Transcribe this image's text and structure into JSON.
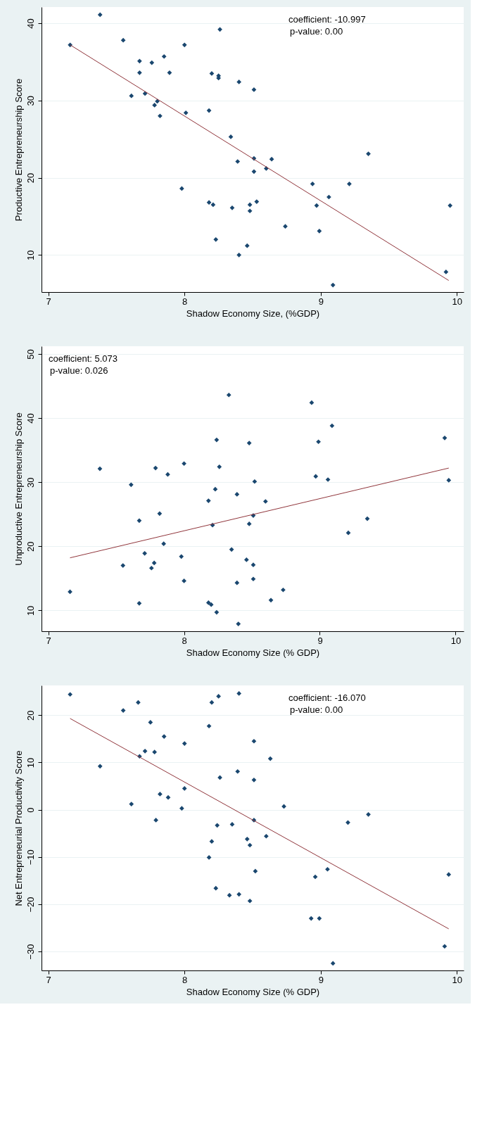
{
  "chart_data": [
    {
      "type": "scatter",
      "xlabel": "Shadow Economy Size, (%GDP)",
      "ylabel": "Productive Entrepreneurship Score",
      "xlim": [
        6.95,
        10.05
      ],
      "xticks": [
        7,
        8,
        9,
        10
      ],
      "ylim": [
        5.2,
        42.1
      ],
      "yticks": [
        10,
        20,
        30,
        40
      ],
      "grid": "y",
      "annotations": [
        "coefficient: -10.997",
        "p-value: 0.00"
      ],
      "series": [
        {
          "marker": "diamond",
          "color": "#1a476f",
          "x": [
            7.38,
            7.16,
            7.55,
            8.0,
            8.26,
            7.67,
            7.76,
            7.85,
            7.67,
            7.89,
            8.2,
            8.25,
            8.25,
            8.4,
            8.51,
            7.61,
            7.71,
            7.8,
            7.78,
            7.82,
            8.01,
            8.18,
            8.34,
            9.35,
            8.39,
            8.51,
            8.64,
            8.51,
            8.6,
            8.94,
            9.21,
            7.98,
            8.18,
            8.21,
            8.35,
            8.48,
            8.53,
            8.48,
            8.97,
            9.06,
            9.95,
            8.74,
            8.99,
            8.23,
            8.46,
            8.4,
            9.09,
            9.92
          ],
          "values": [
            41.1,
            37.2,
            37.8,
            37.2,
            39.2,
            35.1,
            34.9,
            35.7,
            33.6,
            33.6,
            33.5,
            33.2,
            32.9,
            32.4,
            31.4,
            30.6,
            30.9,
            29.9,
            29.4,
            28.0,
            28.4,
            28.7,
            25.3,
            23.1,
            22.1,
            22.5,
            22.4,
            20.8,
            21.2,
            19.2,
            19.2,
            18.6,
            16.8,
            16.5,
            16.1,
            16.5,
            16.9,
            15.7,
            16.4,
            17.5,
            16.4,
            13.7,
            13.1,
            12.0,
            11.2,
            10.0,
            6.1,
            7.8
          ]
        },
        {
          "type": "line",
          "color": "#90353b",
          "x": [
            7.16,
            9.94
          ],
          "values": [
            37.2,
            6.7
          ]
        }
      ]
    },
    {
      "type": "scatter",
      "xlabel": "Shadow Economy Size (% GDP)",
      "ylabel": "Unproductive Entrepreneurship Score",
      "xlim": [
        6.95,
        10.06
      ],
      "xticks": [
        7,
        8,
        9,
        10
      ],
      "ylim": [
        6.75,
        51.2
      ],
      "yticks": [
        10,
        20,
        30,
        40,
        50
      ],
      "grid": "y",
      "annotations": [
        "coefficient: 5.073",
        "p-value: 0.026"
      ],
      "series": [
        {
          "marker": "diamond",
          "color": "#1a476f",
          "x": [
            8.33,
            8.94,
            9.09,
            9.92,
            8.24,
            8.48,
            8.99,
            7.38,
            7.79,
            8.0,
            8.26,
            7.88,
            8.97,
            9.06,
            9.95,
            8.52,
            7.61,
            8.23,
            8.39,
            8.18,
            8.6,
            7.82,
            7.67,
            8.51,
            8.48,
            8.21,
            9.35,
            9.21,
            7.85,
            8.35,
            7.71,
            7.98,
            8.46,
            8.51,
            7.55,
            7.78,
            7.76,
            8.0,
            8.39,
            8.51,
            8.73,
            7.16,
            8.64,
            7.67,
            8.18,
            8.2,
            8.24,
            8.4
          ],
          "values": [
            43.6,
            42.4,
            38.8,
            36.9,
            36.6,
            36.1,
            36.3,
            32.1,
            32.2,
            32.9,
            32.4,
            31.2,
            30.9,
            30.4,
            30.3,
            30.1,
            29.6,
            28.9,
            28.1,
            27.1,
            27.0,
            25.1,
            24.0,
            24.8,
            23.5,
            23.3,
            24.3,
            22.1,
            20.4,
            19.5,
            18.9,
            18.4,
            17.9,
            17.1,
            17.0,
            17.4,
            16.6,
            14.6,
            14.3,
            14.9,
            13.2,
            12.9,
            11.6,
            11.1,
            11.2,
            10.9,
            9.7,
            7.9
          ]
        },
        {
          "type": "line",
          "color": "#90353b",
          "x": [
            7.16,
            9.95
          ],
          "values": [
            18.2,
            32.2
          ]
        }
      ]
    },
    {
      "type": "scatter",
      "xlabel": "Shadow Economy Size (% GDP)",
      "ylabel": "Net Entrepreneurial Productivity Score",
      "xlim": [
        6.95,
        10.05
      ],
      "xticks": [
        7,
        8,
        9,
        10
      ],
      "ylim": [
        -34.0,
        26.3
      ],
      "yticks": [
        -30,
        -20,
        -10,
        0,
        10,
        20
      ],
      "grid": "y",
      "annotations": [
        "coefficient: -16.070",
        "p-value: 0.00"
      ],
      "series": [
        {
          "marker": "diamond",
          "color": "#1a476f",
          "x": [
            7.16,
            8.4,
            8.25,
            8.2,
            7.66,
            7.55,
            7.75,
            8.18,
            7.85,
            8.0,
            8.51,
            7.71,
            7.78,
            7.67,
            8.63,
            7.38,
            8.39,
            8.26,
            8.51,
            8.0,
            7.82,
            7.88,
            7.61,
            7.98,
            8.73,
            9.35,
            7.79,
            8.51,
            9.2,
            8.24,
            8.35,
            8.6,
            8.46,
            8.48,
            8.2,
            8.18,
            8.52,
            9.05,
            8.96,
            9.94,
            8.23,
            8.33,
            8.4,
            8.48,
            8.93,
            8.99,
            9.91,
            9.09
          ],
          "values": [
            24.4,
            24.6,
            24.0,
            22.7,
            22.7,
            21.0,
            18.5,
            17.7,
            15.5,
            14.0,
            14.5,
            12.4,
            12.2,
            11.3,
            10.8,
            9.2,
            8.1,
            6.8,
            6.3,
            4.5,
            3.3,
            2.6,
            1.2,
            0.3,
            0.7,
            -1.0,
            -2.2,
            -2.2,
            -2.7,
            -3.3,
            -3.1,
            -5.6,
            -6.2,
            -7.5,
            -6.7,
            -10.1,
            -13.0,
            -12.6,
            -14.2,
            -13.7,
            -16.6,
            -18.1,
            -17.9,
            -19.3,
            -23.0,
            -23.0,
            -28.9,
            -32.5
          ]
        },
        {
          "type": "line",
          "color": "#90353b",
          "x": [
            7.16,
            9.94
          ],
          "values": [
            19.3,
            -25.2
          ]
        }
      ]
    }
  ]
}
